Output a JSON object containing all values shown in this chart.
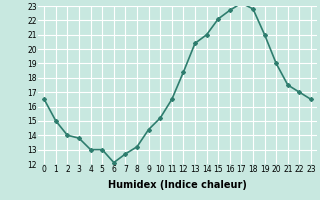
{
  "x": [
    0,
    1,
    2,
    3,
    4,
    5,
    6,
    7,
    8,
    9,
    10,
    11,
    12,
    13,
    14,
    15,
    16,
    17,
    18,
    19,
    20,
    21,
    22,
    23
  ],
  "y": [
    16.5,
    15.0,
    14.0,
    13.8,
    13.0,
    13.0,
    12.1,
    12.7,
    13.2,
    14.4,
    15.2,
    16.5,
    18.4,
    20.4,
    21.0,
    22.1,
    22.7,
    23.2,
    22.8,
    21.0,
    19.0,
    17.5,
    17.0,
    16.5
  ],
  "line_color": "#2e7d6e",
  "marker": "D",
  "marker_size": 2,
  "bg_color": "#c8e8e0",
  "grid_color": "#ffffff",
  "xlabel": "Humidex (Indice chaleur)",
  "xlim": [
    -0.5,
    23.5
  ],
  "ylim": [
    12,
    23
  ],
  "yticks": [
    12,
    13,
    14,
    15,
    16,
    17,
    18,
    19,
    20,
    21,
    22,
    23
  ],
  "xticks": [
    0,
    1,
    2,
    3,
    4,
    5,
    6,
    7,
    8,
    9,
    10,
    11,
    12,
    13,
    14,
    15,
    16,
    17,
    18,
    19,
    20,
    21,
    22,
    23
  ],
  "tick_fontsize": 5.5,
  "xlabel_fontsize": 7.0,
  "line_width": 1.2
}
